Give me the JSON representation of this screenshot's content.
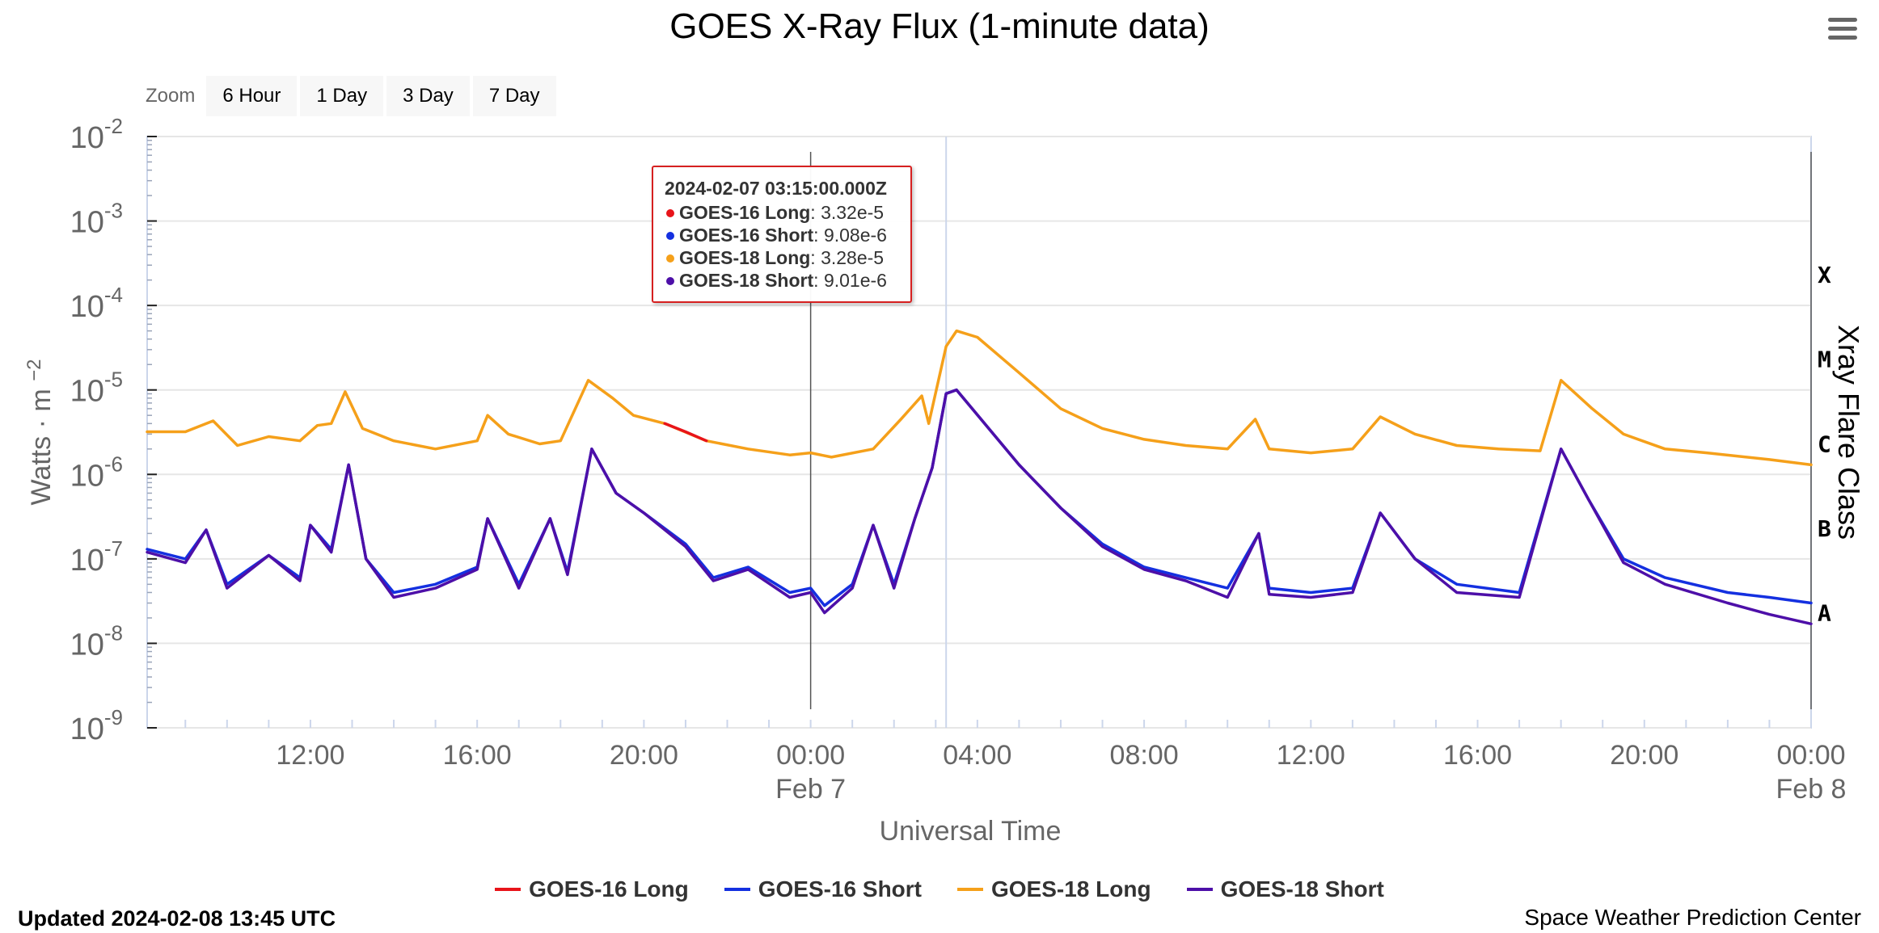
{
  "chart_data": {
    "type": "line",
    "title": "GOES X-Ray Flux (1-minute data)",
    "ylabel": "Watts · m",
    "ylabel_exponent": "−2",
    "xlabel": "Universal Time",
    "y_scale": "log",
    "ylim": [
      1e-09,
      0.01
    ],
    "y_ticks": [
      {
        "base": "10",
        "exp": "-2"
      },
      {
        "base": "10",
        "exp": "-3"
      },
      {
        "base": "10",
        "exp": "-4"
      },
      {
        "base": "10",
        "exp": "-5"
      },
      {
        "base": "10",
        "exp": "-6"
      },
      {
        "base": "10",
        "exp": "-7"
      },
      {
        "base": "10",
        "exp": "-8"
      },
      {
        "base": "10",
        "exp": "-9"
      }
    ],
    "xlim": [
      "2024-02-06 08:05Z",
      "2024-02-08 00:00Z"
    ],
    "x_ticks": [
      {
        "label": "12:00",
        "sub": "",
        "time": "2024-02-06 12:00Z"
      },
      {
        "label": "16:00",
        "sub": "",
        "time": "2024-02-06 16:00Z"
      },
      {
        "label": "20:00",
        "sub": "",
        "time": "2024-02-06 20:00Z"
      },
      {
        "label": "00:00",
        "sub": "Feb 7",
        "time": "2024-02-07 00:00Z"
      },
      {
        "label": "04:00",
        "sub": "",
        "time": "2024-02-07 04:00Z"
      },
      {
        "label": "08:00",
        "sub": "",
        "time": "2024-02-07 08:00Z"
      },
      {
        "label": "12:00",
        "sub": "",
        "time": "2024-02-07 12:00Z"
      },
      {
        "label": "16:00",
        "sub": "",
        "time": "2024-02-07 16:00Z"
      },
      {
        "label": "20:00",
        "sub": "",
        "time": "2024-02-07 20:00Z"
      },
      {
        "label": "00:00",
        "sub": "Feb 8",
        "time": "2024-02-08 00:00Z"
      }
    ],
    "flare_class_axis": {
      "label": "Xray Flare Class",
      "classes": [
        {
          "label": "X",
          "flux": 0.0001
        },
        {
          "label": "M",
          "flux": 1e-05
        },
        {
          "label": "C",
          "flux": 1e-06
        },
        {
          "label": "B",
          "flux": 1e-07
        },
        {
          "label": "A",
          "flux": 1e-08
        }
      ]
    },
    "grid": true,
    "legend_position": "bottom-center",
    "crosshair_time": "2024-02-07 03:15Z",
    "series": [
      {
        "name": "GOES-18 Long",
        "color": "#f5a01a",
        "points": [
          [
            "2024-02-06 08:05Z",
            3.2e-06
          ],
          [
            "2024-02-06 09:00Z",
            3.2e-06
          ],
          [
            "2024-02-06 09:40Z",
            4.3e-06
          ],
          [
            "2024-02-06 10:15Z",
            2.2e-06
          ],
          [
            "2024-02-06 11:00Z",
            2.8e-06
          ],
          [
            "2024-02-06 11:45Z",
            2.5e-06
          ],
          [
            "2024-02-06 12:10Z",
            3.8e-06
          ],
          [
            "2024-02-06 12:30Z",
            4e-06
          ],
          [
            "2024-02-06 12:50Z",
            9.5e-06
          ],
          [
            "2024-02-06 13:15Z",
            3.5e-06
          ],
          [
            "2024-02-06 14:00Z",
            2.5e-06
          ],
          [
            "2024-02-06 15:00Z",
            2e-06
          ],
          [
            "2024-02-06 16:00Z",
            2.5e-06
          ],
          [
            "2024-02-06 16:15Z",
            5e-06
          ],
          [
            "2024-02-06 16:45Z",
            3e-06
          ],
          [
            "2024-02-06 17:30Z",
            2.3e-06
          ],
          [
            "2024-02-06 18:00Z",
            2.5e-06
          ],
          [
            "2024-02-06 18:40Z",
            1.3e-05
          ],
          [
            "2024-02-06 19:15Z",
            8e-06
          ],
          [
            "2024-02-06 19:45Z",
            5e-06
          ],
          [
            "2024-02-06 20:30Z",
            4e-06
          ],
          [
            "2024-02-06 21:30Z",
            2.5e-06
          ],
          [
            "2024-02-06 22:30Z",
            2e-06
          ],
          [
            "2024-02-06 23:30Z",
            1.7e-06
          ],
          [
            "2024-02-07 00:00Z",
            1.8e-06
          ],
          [
            "2024-02-07 00:30Z",
            1.6e-06
          ],
          [
            "2024-02-07 01:30Z",
            2e-06
          ],
          [
            "2024-02-07 02:10Z",
            4.5e-06
          ],
          [
            "2024-02-07 02:40Z",
            8.5e-06
          ],
          [
            "2024-02-07 02:50Z",
            4e-06
          ],
          [
            "2024-02-07 03:15Z",
            3.28e-05
          ],
          [
            "2024-02-07 03:30Z",
            5e-05
          ],
          [
            "2024-02-07 04:00Z",
            4.2e-05
          ],
          [
            "2024-02-07 05:00Z",
            1.6e-05
          ],
          [
            "2024-02-07 06:00Z",
            6e-06
          ],
          [
            "2024-02-07 07:00Z",
            3.5e-06
          ],
          [
            "2024-02-07 08:00Z",
            2.6e-06
          ],
          [
            "2024-02-07 09:00Z",
            2.2e-06
          ],
          [
            "2024-02-07 10:00Z",
            2e-06
          ],
          [
            "2024-02-07 10:40Z",
            4.5e-06
          ],
          [
            "2024-02-07 11:00Z",
            2e-06
          ],
          [
            "2024-02-07 12:00Z",
            1.8e-06
          ],
          [
            "2024-02-07 13:00Z",
            2e-06
          ],
          [
            "2024-02-07 13:40Z",
            4.8e-06
          ],
          [
            "2024-02-07 14:30Z",
            3e-06
          ],
          [
            "2024-02-07 15:30Z",
            2.2e-06
          ],
          [
            "2024-02-07 16:30Z",
            2e-06
          ],
          [
            "2024-02-07 17:30Z",
            1.9e-06
          ],
          [
            "2024-02-07 18:00Z",
            1.3e-05
          ],
          [
            "2024-02-07 18:45Z",
            6e-06
          ],
          [
            "2024-02-07 19:30Z",
            3e-06
          ],
          [
            "2024-02-07 20:30Z",
            2e-06
          ],
          [
            "2024-02-07 21:30Z",
            1.8e-06
          ],
          [
            "2024-02-07 23:00Z",
            1.5e-06
          ],
          [
            "2024-02-08 00:00Z",
            1.3e-06
          ]
        ]
      },
      {
        "name": "GOES-16 Long",
        "color": "#e8141a",
        "points": [
          [
            "2024-02-06 20:30Z",
            4e-06
          ],
          [
            "2024-02-06 21:00Z",
            3.2e-06
          ],
          [
            "2024-02-06 21:30Z",
            2.5e-06
          ]
        ]
      },
      {
        "name": "GOES-16 Short",
        "color": "#1430e0",
        "points": [
          [
            "2024-02-06 08:05Z",
            1.3e-07
          ],
          [
            "2024-02-06 09:00Z",
            1e-07
          ],
          [
            "2024-02-06 09:30Z",
            2.2e-07
          ],
          [
            "2024-02-06 10:00Z",
            5e-08
          ],
          [
            "2024-02-06 11:00Z",
            1.1e-07
          ],
          [
            "2024-02-06 11:45Z",
            6e-08
          ],
          [
            "2024-02-06 12:00Z",
            2.5e-07
          ],
          [
            "2024-02-06 12:30Z",
            1.3e-07
          ],
          [
            "2024-02-06 12:55Z",
            1.3e-06
          ],
          [
            "2024-02-06 13:20Z",
            1e-07
          ],
          [
            "2024-02-06 14:00Z",
            4e-08
          ],
          [
            "2024-02-06 15:00Z",
            5e-08
          ],
          [
            "2024-02-06 16:00Z",
            8e-08
          ],
          [
            "2024-02-06 16:15Z",
            3e-07
          ],
          [
            "2024-02-06 17:00Z",
            5e-08
          ],
          [
            "2024-02-06 17:45Z",
            3e-07
          ],
          [
            "2024-02-06 18:10Z",
            7e-08
          ],
          [
            "2024-02-06 18:45Z",
            2e-06
          ],
          [
            "2024-02-06 19:20Z",
            6e-07
          ],
          [
            "2024-02-06 20:00Z",
            3.5e-07
          ],
          [
            "2024-02-06 21:00Z",
            1.5e-07
          ],
          [
            "2024-02-06 21:40Z",
            6e-08
          ],
          [
            "2024-02-06 22:30Z",
            8e-08
          ],
          [
            "2024-02-06 23:30Z",
            4e-08
          ],
          [
            "2024-02-07 00:00Z",
            4.5e-08
          ],
          [
            "2024-02-07 00:20Z",
            2.8e-08
          ],
          [
            "2024-02-07 01:00Z",
            5e-08
          ],
          [
            "2024-02-07 01:30Z",
            2.5e-07
          ],
          [
            "2024-02-07 02:00Z",
            5e-08
          ],
          [
            "2024-02-07 02:30Z",
            3e-07
          ],
          [
            "2024-02-07 02:55Z",
            1.2e-06
          ],
          [
            "2024-02-07 03:15Z",
            9.08e-06
          ],
          [
            "2024-02-07 03:30Z",
            1e-05
          ],
          [
            "2024-02-07 05:00Z",
            1.3e-06
          ],
          [
            "2024-02-07 06:00Z",
            4e-07
          ],
          [
            "2024-02-07 07:00Z",
            1.5e-07
          ],
          [
            "2024-02-07 08:00Z",
            8e-08
          ],
          [
            "2024-02-07 09:00Z",
            6e-08
          ],
          [
            "2024-02-07 10:00Z",
            4.5e-08
          ],
          [
            "2024-02-07 10:45Z",
            2e-07
          ],
          [
            "2024-02-07 11:00Z",
            4.5e-08
          ],
          [
            "2024-02-07 12:00Z",
            4e-08
          ],
          [
            "2024-02-07 13:00Z",
            4.5e-08
          ],
          [
            "2024-02-07 13:40Z",
            3.5e-07
          ],
          [
            "2024-02-07 14:30Z",
            1e-07
          ],
          [
            "2024-02-07 15:30Z",
            5e-08
          ],
          [
            "2024-02-07 17:00Z",
            4e-08
          ],
          [
            "2024-02-07 18:00Z",
            2e-06
          ],
          [
            "2024-02-07 18:40Z",
            5e-07
          ],
          [
            "2024-02-07 19:30Z",
            1e-07
          ],
          [
            "2024-02-07 20:30Z",
            6e-08
          ],
          [
            "2024-02-07 22:00Z",
            4e-08
          ],
          [
            "2024-02-07 23:00Z",
            3.5e-08
          ],
          [
            "2024-02-08 00:00Z",
            3e-08
          ]
        ]
      },
      {
        "name": "GOES-18 Short",
        "color": "#4d0fa8",
        "points": [
          [
            "2024-02-06 08:05Z",
            1.2e-07
          ],
          [
            "2024-02-06 09:00Z",
            9e-08
          ],
          [
            "2024-02-06 09:30Z",
            2.2e-07
          ],
          [
            "2024-02-06 10:00Z",
            4.5e-08
          ],
          [
            "2024-02-06 11:00Z",
            1.1e-07
          ],
          [
            "2024-02-06 11:45Z",
            5.5e-08
          ],
          [
            "2024-02-06 12:00Z",
            2.5e-07
          ],
          [
            "2024-02-06 12:30Z",
            1.2e-07
          ],
          [
            "2024-02-06 12:55Z",
            1.3e-06
          ],
          [
            "2024-02-06 13:20Z",
            1e-07
          ],
          [
            "2024-02-06 14:00Z",
            3.5e-08
          ],
          [
            "2024-02-06 15:00Z",
            4.5e-08
          ],
          [
            "2024-02-06 16:00Z",
            7.5e-08
          ],
          [
            "2024-02-06 16:15Z",
            3e-07
          ],
          [
            "2024-02-06 17:00Z",
            4.5e-08
          ],
          [
            "2024-02-06 17:45Z",
            3e-07
          ],
          [
            "2024-02-06 18:10Z",
            6.5e-08
          ],
          [
            "2024-02-06 18:45Z",
            2e-06
          ],
          [
            "2024-02-06 19:20Z",
            6e-07
          ],
          [
            "2024-02-06 20:00Z",
            3.5e-07
          ],
          [
            "2024-02-06 21:00Z",
            1.4e-07
          ],
          [
            "2024-02-06 21:40Z",
            5.5e-08
          ],
          [
            "2024-02-06 22:30Z",
            7.5e-08
          ],
          [
            "2024-02-06 23:30Z",
            3.5e-08
          ],
          [
            "2024-02-07 00:00Z",
            4e-08
          ],
          [
            "2024-02-07 00:20Z",
            2.3e-08
          ],
          [
            "2024-02-07 01:00Z",
            4.5e-08
          ],
          [
            "2024-02-07 01:30Z",
            2.5e-07
          ],
          [
            "2024-02-07 02:00Z",
            4.5e-08
          ],
          [
            "2024-02-07 02:30Z",
            3e-07
          ],
          [
            "2024-02-07 02:55Z",
            1.2e-06
          ],
          [
            "2024-02-07 03:15Z",
            9.01e-06
          ],
          [
            "2024-02-07 03:30Z",
            1e-05
          ],
          [
            "2024-02-07 05:00Z",
            1.3e-06
          ],
          [
            "2024-02-07 06:00Z",
            4e-07
          ],
          [
            "2024-02-07 07:00Z",
            1.4e-07
          ],
          [
            "2024-02-07 08:00Z",
            7.5e-08
          ],
          [
            "2024-02-07 09:00Z",
            5.5e-08
          ],
          [
            "2024-02-07 10:00Z",
            3.5e-08
          ],
          [
            "2024-02-07 10:45Z",
            2e-07
          ],
          [
            "2024-02-07 11:00Z",
            3.8e-08
          ],
          [
            "2024-02-07 12:00Z",
            3.5e-08
          ],
          [
            "2024-02-07 13:00Z",
            4e-08
          ],
          [
            "2024-02-07 13:40Z",
            3.5e-07
          ],
          [
            "2024-02-07 14:30Z",
            1e-07
          ],
          [
            "2024-02-07 15:30Z",
            4e-08
          ],
          [
            "2024-02-07 17:00Z",
            3.5e-08
          ],
          [
            "2024-02-07 18:00Z",
            2e-06
          ],
          [
            "2024-02-07 18:40Z",
            5e-07
          ],
          [
            "2024-02-07 19:30Z",
            9e-08
          ],
          [
            "2024-02-07 20:30Z",
            5e-08
          ],
          [
            "2024-02-07 22:00Z",
            3e-08
          ],
          [
            "2024-02-07 23:00Z",
            2.2e-08
          ],
          [
            "2024-02-08 00:00Z",
            1.7e-08
          ]
        ]
      }
    ]
  },
  "zoom": {
    "label": "Zoom",
    "buttons": [
      "6 Hour",
      "1 Day",
      "3 Day",
      "7 Day"
    ]
  },
  "tooltip": {
    "time": "2024-02-07 03:15:00.000Z",
    "rows": [
      {
        "name": "GOES-16 Long",
        "value": "3.32e-5",
        "color": "#e8141a"
      },
      {
        "name": "GOES-16 Short",
        "value": "9.08e-6",
        "color": "#1430e0"
      },
      {
        "name": "GOES-18 Long",
        "value": "3.28e-5",
        "color": "#f5a01a"
      },
      {
        "name": "GOES-18 Short",
        "value": "9.01e-6",
        "color": "#4d0fa8"
      }
    ]
  },
  "legend": [
    {
      "name": "GOES-16 Long",
      "color": "#e8141a"
    },
    {
      "name": "GOES-16 Short",
      "color": "#1430e0"
    },
    {
      "name": "GOES-18 Long",
      "color": "#f5a01a"
    },
    {
      "name": "GOES-18 Short",
      "color": "#4d0fa8"
    }
  ],
  "footer": {
    "updated": "Updated 2024-02-08 13:45 UTC",
    "credit": "Space Weather Prediction Center"
  }
}
